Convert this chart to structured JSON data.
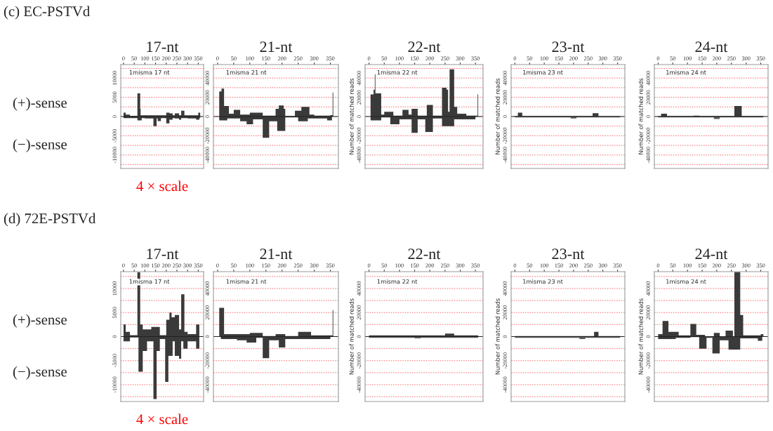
{
  "chart_data": [
    {
      "type": "area",
      "title": "17-nt",
      "annotations": [
        "1misma 17 nt",
        "(c) EC-PSTVd",
        "(+)-sense",
        "(−)-sense",
        "4 × scale"
      ],
      "xlim": [
        -13,
        375
      ],
      "xticks": [
        0,
        50,
        100,
        150,
        200,
        250,
        300,
        350
      ],
      "ylim": [
        -13500,
        13500
      ],
      "yticks": [
        {
          "value": -12500,
          "label": null
        },
        {
          "value": -10000,
          "label": "-10000"
        },
        {
          "value": -7500,
          "label": null
        },
        {
          "value": -5000,
          "label": "-5000"
        },
        {
          "value": -2500,
          "label": null
        },
        0,
        {
          "value": 2500,
          "label": null
        },
        5000,
        {
          "value": 7500,
          "label": null
        },
        10000,
        {
          "value": 12500,
          "label": null
        }
      ],
      "grid": "y",
      "ref_lines": [
        {
          "axis": "y",
          "value": 0,
          "color": "#222222"
        }
      ],
      "series": [
        {
          "color": "#3a3a3a",
          "x": [
            0,
            10,
            10,
            30,
            30,
            65,
            65,
            78,
            78,
            80,
            80,
            200,
            200,
            215,
            215,
            230,
            230,
            240,
            240,
            260,
            260,
            270,
            270,
            285,
            285,
            350,
            350,
            359
          ],
          "values": [
            1000,
            1000,
            500,
            500,
            200,
            200,
            6000,
            6000,
            2000,
            2000,
            300,
            300,
            1000,
            1000,
            800,
            800,
            300,
            300,
            800,
            800,
            300,
            300,
            1500,
            1500,
            300,
            300,
            1000,
            1000
          ]
        },
        {
          "color": "#3a3a3a",
          "x": [
            0,
            65,
            65,
            85,
            85,
            100,
            100,
            140,
            140,
            155,
            155,
            160,
            160,
            175,
            175,
            200,
            200,
            215,
            215,
            230,
            230,
            240,
            240,
            260,
            260,
            270,
            270,
            300,
            300,
            340,
            340,
            355,
            355,
            359
          ],
          "values": [
            -400,
            -400,
            -1000,
            -1000,
            -400,
            -400,
            -500,
            -500,
            -2500,
            -2500,
            -500,
            -500,
            -1200,
            -1200,
            -400,
            -400,
            -1800,
            -1800,
            -800,
            -800,
            -400,
            -400,
            -500,
            -500,
            -800,
            -800,
            -400,
            -400,
            -500,
            -500,
            -800,
            -800,
            -400,
            -400
          ]
        }
      ]
    },
    {
      "type": "area",
      "title": "21-nt",
      "annotations": [
        "1misma 21 nt"
      ],
      "xlim": [
        -13,
        375
      ],
      "xticks": [
        0,
        50,
        100,
        150,
        200,
        250,
        300,
        350
      ],
      "ylim": [
        -54000,
        54000
      ],
      "yticks": [
        {
          "value": -50000,
          "label": null
        },
        {
          "value": -40000,
          "label": "-40000"
        },
        {
          "value": -30000,
          "label": null
        },
        {
          "value": -20000,
          "label": "-20000"
        },
        {
          "value": -10000,
          "label": null
        },
        0,
        {
          "value": 10000,
          "label": null
        },
        20000,
        {
          "value": 30000,
          "label": null
        },
        40000,
        {
          "value": 50000,
          "label": null
        }
      ],
      "grid": "y",
      "ref_lines": [
        {
          "axis": "y",
          "value": 0,
          "color": "#222222"
        }
      ],
      "series": [
        {
          "color": "#3a3a3a",
          "x": [
            5,
            12,
            12,
            20,
            20,
            35,
            35,
            50,
            50,
            70,
            70,
            100,
            100,
            140,
            140,
            180,
            180,
            190,
            190,
            205,
            205,
            210,
            210,
            240,
            240,
            260,
            260,
            285,
            285,
            300,
            300,
            350,
            350,
            357,
            357,
            359
          ],
          "values": [
            26000,
            26000,
            29000,
            29000,
            11000,
            11000,
            3000,
            3000,
            7000,
            7000,
            2000,
            2000,
            4000,
            4000,
            1000,
            1000,
            8000,
            8000,
            11500,
            11500,
            8000,
            8000,
            500,
            500,
            6000,
            6000,
            10000,
            10000,
            2000,
            2000,
            1000,
            1000,
            1500,
            1500,
            25000,
            25000
          ]
        },
        {
          "color": "#3a3a3a",
          "x": [
            5,
            30,
            30,
            70,
            70,
            90,
            90,
            110,
            110,
            140,
            140,
            160,
            160,
            185,
            185,
            210,
            210,
            250,
            250,
            280,
            280,
            340,
            340,
            355
          ],
          "values": [
            -4000,
            -4000,
            -2000,
            -2000,
            -5000,
            -5000,
            -8000,
            -8000,
            -3000,
            -3000,
            -22000,
            -22000,
            -5000,
            -5000,
            -15000,
            -15000,
            -1000,
            -1000,
            -5000,
            -5000,
            -2000,
            -2000,
            -4000,
            -4000
          ]
        }
      ]
    },
    {
      "type": "area",
      "title": "22-nt",
      "ylabel": "Number of matched reads",
      "annotations": [
        "1misma 22 nt"
      ],
      "xlim": [
        -13,
        375
      ],
      "xticks": [
        0,
        50,
        100,
        150,
        200,
        250,
        300,
        350
      ],
      "ylim": [
        -54000,
        54000
      ],
      "yticks": [
        {
          "value": -50000,
          "label": null
        },
        {
          "value": -40000,
          "label": "-40000"
        },
        {
          "value": -30000,
          "label": null
        },
        {
          "value": -20000,
          "label": "-20000"
        },
        {
          "value": -10000,
          "label": null
        },
        0,
        {
          "value": 10000,
          "label": null
        },
        20000,
        {
          "value": 30000,
          "label": null
        },
        40000,
        {
          "value": 50000,
          "label": null
        }
      ],
      "grid": "y",
      "ref_lines": [
        {
          "axis": "y",
          "value": 0,
          "color": "#222222"
        }
      ],
      "series": [
        {
          "color": "#3a3a3a",
          "x": [
            5,
            15,
            15,
            19,
            19,
            21,
            21,
            40,
            40,
            50,
            50,
            80,
            80,
            110,
            110,
            130,
            130,
            140,
            140,
            160,
            160,
            190,
            190,
            210,
            210,
            240,
            240,
            255,
            255,
            260,
            260,
            265,
            265,
            280,
            280,
            290,
            290,
            320,
            320,
            357,
            357,
            359
          ],
          "values": [
            23000,
            23000,
            28000,
            28000,
            44000,
            44000,
            24000,
            24000,
            2000,
            2000,
            5000,
            5000,
            1000,
            1000,
            7000,
            7000,
            2000,
            2000,
            8000,
            8000,
            1000,
            1000,
            12000,
            12000,
            1000,
            1000,
            30000,
            30000,
            28000,
            28000,
            5000,
            5000,
            49000,
            49000,
            10000,
            10000,
            3000,
            3000,
            1000,
            1000,
            23000,
            23000
          ]
        },
        {
          "color": "#3a3a3a",
          "x": [
            5,
            40,
            40,
            70,
            70,
            100,
            100,
            140,
            140,
            160,
            160,
            185,
            185,
            210,
            210,
            240,
            240,
            280,
            280,
            350
          ],
          "values": [
            -4000,
            -4000,
            -1000,
            -1000,
            -8000,
            -8000,
            -3000,
            -3000,
            -17000,
            -17000,
            -3000,
            -3000,
            -16000,
            -16000,
            -2000,
            -2000,
            -10000,
            -10000,
            -3000,
            -3000
          ]
        }
      ]
    },
    {
      "type": "area",
      "title": "23-nt",
      "ylabel": "Number of matched reads",
      "annotations": [
        "1misma 23 nt"
      ],
      "xlim": [
        -13,
        375
      ],
      "xticks": [
        0,
        50,
        100,
        150,
        200,
        250,
        300,
        350
      ],
      "ylim": [
        -54000,
        54000
      ],
      "yticks": [
        {
          "value": -50000,
          "label": null
        },
        {
          "value": -40000,
          "label": "-40000"
        },
        {
          "value": -30000,
          "label": null
        },
        {
          "value": -20000,
          "label": "-20000"
        },
        {
          "value": -10000,
          "label": null
        },
        0,
        {
          "value": 10000,
          "label": null
        },
        20000,
        {
          "value": 30000,
          "label": null
        },
        40000,
        {
          "value": 50000,
          "label": null
        }
      ],
      "grid": "y",
      "ref_lines": [
        {
          "axis": "y",
          "value": 0,
          "color": "#222222"
        }
      ],
      "series": [
        {
          "color": "#3a3a3a",
          "x": [
            0,
            10,
            10,
            25,
            25,
            265,
            265,
            285,
            285,
            359
          ],
          "values": [
            300,
            300,
            4000,
            4000,
            500,
            500,
            3500,
            3500,
            300,
            300
          ]
        },
        {
          "color": "#5a5a5a",
          "x": [
            0,
            190,
            190,
            210,
            210,
            359
          ],
          "values": [
            -1000,
            -1000,
            -2000,
            -2000,
            -1000,
            -1000
          ]
        }
      ]
    },
    {
      "type": "area",
      "title": "24-nt",
      "ylabel": "Number of matched reads",
      "annotations": [
        "1misma 24 nt"
      ],
      "xlim": [
        -13,
        375
      ],
      "xticks": [
        0,
        50,
        100,
        150,
        200,
        250,
        300,
        350
      ],
      "ylim": [
        -54000,
        54000
      ],
      "yticks": [
        {
          "value": -50000,
          "label": null
        },
        {
          "value": -40000,
          "label": "-40000"
        },
        {
          "value": -30000,
          "label": null
        },
        {
          "value": -20000,
          "label": "-20000"
        },
        {
          "value": -10000,
          "label": null
        },
        0,
        {
          "value": 10000,
          "label": null
        },
        20000,
        {
          "value": 30000,
          "label": null
        },
        40000,
        {
          "value": 50000,
          "label": null
        }
      ],
      "grid": "y",
      "ref_lines": [
        {
          "axis": "y",
          "value": 0,
          "color": "#222222"
        }
      ],
      "series": [
        {
          "color": "#3a3a3a",
          "x": [
            0,
            10,
            10,
            30,
            30,
            120,
            120,
            140,
            140,
            260,
            260,
            285,
            285,
            359
          ],
          "values": [
            300,
            300,
            3000,
            3000,
            500,
            500,
            1000,
            1000,
            500,
            500,
            11000,
            11000,
            500,
            500
          ]
        },
        {
          "color": "#5a5a5a",
          "x": [
            0,
            190,
            190,
            210,
            210,
            359
          ],
          "values": [
            -1000,
            -1000,
            -2500,
            -2500,
            -1000,
            -1000
          ]
        }
      ]
    },
    {
      "type": "area",
      "title": "17-nt",
      "annotations": [
        "1misma 17 nt",
        "(d) 72E-PSTVd",
        "(+)-sense",
        "(−)-sense",
        "4 × scale"
      ],
      "xlim": [
        -13,
        375
      ],
      "xticks": [
        0,
        50,
        100,
        150,
        200,
        250,
        300,
        350
      ],
      "ylim": [
        -13500,
        13500
      ],
      "yticks": [
        {
          "value": -12500,
          "label": null
        },
        {
          "value": -10000,
          "label": "-10000"
        },
        {
          "value": -7500,
          "label": null
        },
        {
          "value": -5000,
          "label": "-5000"
        },
        {
          "value": -2500,
          "label": null
        },
        0,
        {
          "value": 2500,
          "label": null
        },
        5000,
        {
          "value": 7500,
          "label": null
        },
        10000,
        {
          "value": 12500,
          "label": null
        }
      ],
      "grid": "y",
      "ref_lines": [
        {
          "axis": "y",
          "value": 0,
          "color": "#222222"
        }
      ],
      "series": [
        {
          "color": "#3a3a3a",
          "x": [
            0,
            10,
            10,
            30,
            30,
            65,
            65,
            78,
            78,
            90,
            90,
            130,
            130,
            170,
            170,
            200,
            200,
            215,
            215,
            225,
            225,
            240,
            240,
            260,
            260,
            270,
            270,
            285,
            285,
            300,
            300,
            340,
            340,
            355
          ],
          "values": [
            2500,
            2500,
            1000,
            1000,
            300,
            300,
            13400,
            13400,
            2500,
            2500,
            1500,
            1500,
            2000,
            2000,
            300,
            300,
            3500,
            3500,
            5000,
            5000,
            4000,
            4000,
            4500,
            4500,
            1500,
            1500,
            8800,
            8800,
            1000,
            1000,
            500,
            500,
            2500,
            2500
          ]
        },
        {
          "color": "#3a3a3a",
          "x": [
            0,
            30,
            30,
            70,
            70,
            90,
            90,
            110,
            110,
            140,
            140,
            155,
            155,
            170,
            170,
            195,
            195,
            210,
            210,
            230,
            230,
            240,
            240,
            260,
            260,
            270,
            270,
            280,
            280,
            300,
            300,
            340,
            340,
            355
          ],
          "values": [
            -1000,
            -1000,
            -200,
            -200,
            -7300,
            -7300,
            -3000,
            -3000,
            -1000,
            -1000,
            -13000,
            -13000,
            -3000,
            -3000,
            -500,
            -500,
            -9400,
            -9400,
            -4000,
            -4000,
            -1000,
            -1000,
            -4000,
            -4000,
            -4600,
            -4600,
            -1000,
            -1000,
            -2500,
            -2500,
            -1000,
            -1000,
            -2500,
            -2500
          ]
        }
      ]
    },
    {
      "type": "area",
      "title": "21-nt",
      "annotations": [
        "1misma 21 nt"
      ],
      "xlim": [
        -13,
        375
      ],
      "xticks": [
        0,
        50,
        100,
        150,
        200,
        250,
        300,
        350
      ],
      "ylim": [
        -54000,
        54000
      ],
      "yticks": [
        {
          "value": -50000,
          "label": null
        },
        {
          "value": -40000,
          "label": "-40000"
        },
        {
          "value": -30000,
          "label": null
        },
        {
          "value": -20000,
          "label": "-20000"
        },
        {
          "value": -10000,
          "label": null
        },
        0,
        {
          "value": 10000,
          "label": null
        },
        20000,
        {
          "value": 30000,
          "label": null
        },
        40000,
        {
          "value": 50000,
          "label": null
        }
      ],
      "grid": "y",
      "ref_lines": [
        {
          "axis": "y",
          "value": 0,
          "color": "#222222"
        }
      ],
      "series": [
        {
          "color": "#3a3a3a",
          "x": [
            5,
            20,
            20,
            100,
            100,
            140,
            140,
            180,
            180,
            210,
            210,
            250,
            250,
            290,
            290,
            357,
            357,
            359
          ],
          "values": [
            24000,
            24000,
            2000,
            2000,
            3000,
            3000,
            500,
            500,
            2000,
            2000,
            500,
            500,
            4000,
            4000,
            1000,
            1000,
            22000,
            22000
          ]
        },
        {
          "color": "#3a3a3a",
          "x": [
            10,
            60,
            60,
            90,
            90,
            120,
            120,
            140,
            140,
            160,
            160,
            190,
            190,
            210,
            210,
            350
          ],
          "values": [
            -2000,
            -2000,
            -3000,
            -3000,
            -5000,
            -5000,
            -1000,
            -1000,
            -18000,
            -18000,
            -3000,
            -3000,
            -9000,
            -9000,
            -2000,
            -2000
          ]
        }
      ]
    },
    {
      "type": "area",
      "title": "22-nt",
      "ylabel": "Number of matched reads",
      "annotations": [
        "1misma 22 nt"
      ],
      "xlim": [
        -13,
        375
      ],
      "xticks": [
        0,
        50,
        100,
        150,
        200,
        250,
        300,
        350
      ],
      "ylim": [
        -54000,
        54000
      ],
      "yticks": [
        {
          "value": -50000,
          "label": null
        },
        {
          "value": -40000,
          "label": "-40000"
        },
        {
          "value": -30000,
          "label": null
        },
        {
          "value": -20000,
          "label": "-20000"
        },
        {
          "value": -10000,
          "label": null
        },
        0,
        {
          "value": 10000,
          "label": null
        },
        20000,
        {
          "value": 30000,
          "label": null
        },
        40000,
        {
          "value": 50000,
          "label": null
        }
      ],
      "grid": "y",
      "ref_lines": [
        {
          "axis": "y",
          "value": 0,
          "color": "#222222"
        }
      ],
      "series": [
        {
          "color": "#3a3a3a",
          "x": [
            0,
            250,
            250,
            280,
            280,
            359
          ],
          "values": [
            1000,
            1000,
            2500,
            2500,
            1000,
            1000
          ]
        },
        {
          "color": "#5a5a5a",
          "x": [
            0,
            150,
            150,
            170,
            170,
            359
          ],
          "values": [
            -1000,
            -1000,
            -1500,
            -1500,
            -1000,
            -1000
          ]
        }
      ]
    },
    {
      "type": "area",
      "title": "23-nt",
      "ylabel": "Number of matched reads",
      "annotations": [
        "1misma 23 nt"
      ],
      "xlim": [
        -13,
        375
      ],
      "xticks": [
        0,
        50,
        100,
        150,
        200,
        250,
        300,
        350
      ],
      "ylim": [
        -54000,
        54000
      ],
      "yticks": [
        {
          "value": -50000,
          "label": null
        },
        {
          "value": -40000,
          "label": "-40000"
        },
        {
          "value": -30000,
          "label": null
        },
        {
          "value": -20000,
          "label": "-20000"
        },
        {
          "value": -10000,
          "label": null
        },
        0,
        {
          "value": 10000,
          "label": null
        },
        20000,
        {
          "value": 30000,
          "label": null
        },
        40000,
        {
          "value": 50000,
          "label": null
        }
      ],
      "grid": "y",
      "ref_lines": [
        {
          "axis": "y",
          "value": 0,
          "color": "#222222"
        }
      ],
      "series": [
        {
          "color": "#3a3a3a",
          "x": [
            0,
            270,
            270,
            285,
            285,
            359
          ],
          "values": [
            500,
            500,
            4000,
            4000,
            500,
            500
          ]
        },
        {
          "color": "#5a5a5a",
          "x": [
            0,
            220,
            220,
            240,
            240,
            359
          ],
          "values": [
            -1000,
            -1000,
            -2000,
            -2000,
            -1000,
            -1000
          ]
        }
      ]
    },
    {
      "type": "area",
      "title": "24-nt",
      "ylabel": "Number of matched reads",
      "annotations": [
        "1misma 24 nt"
      ],
      "xlim": [
        -13,
        375
      ],
      "xticks": [
        0,
        50,
        100,
        150,
        200,
        250,
        300,
        350
      ],
      "ylim": [
        -54000,
        54000
      ],
      "yticks": [
        {
          "value": -50000,
          "label": null
        },
        {
          "value": -40000,
          "label": "-40000"
        },
        {
          "value": -30000,
          "label": null
        },
        {
          "value": -20000,
          "label": "-20000"
        },
        {
          "value": -10000,
          "label": null
        },
        0,
        {
          "value": 10000,
          "label": null
        },
        20000,
        {
          "value": 30000,
          "label": null
        },
        40000,
        {
          "value": 50000,
          "label": null
        }
      ],
      "grid": "y",
      "ref_lines": [
        {
          "axis": "y",
          "value": 0,
          "color": "#222222"
        }
      ],
      "series": [
        {
          "color": "#3a3a3a",
          "x": [
            0,
            15,
            15,
            35,
            35,
            70,
            70,
            110,
            110,
            130,
            130,
            160,
            160,
            190,
            190,
            210,
            210,
            230,
            230,
            255,
            255,
            260,
            260,
            280,
            280,
            290,
            290,
            350,
            350,
            359
          ],
          "values": [
            2000,
            2000,
            13000,
            13000,
            4000,
            4000,
            1000,
            1000,
            10500,
            10500,
            1500,
            1500,
            0,
            0,
            3000,
            3000,
            0,
            0,
            5000,
            5000,
            0,
            0,
            53700,
            53700,
            18000,
            18000,
            1000,
            1000,
            2000,
            2000
          ]
        },
        {
          "color": "#3a3a3a",
          "x": [
            0,
            60,
            60,
            110,
            110,
            140,
            140,
            165,
            165,
            185,
            185,
            210,
            210,
            240,
            240,
            280,
            280,
            340,
            340,
            355
          ],
          "values": [
            -2000,
            -2000,
            -1000,
            -1000,
            -500,
            -500,
            -10000,
            -10000,
            -1000,
            -1000,
            -14000,
            -14000,
            -3000,
            -3000,
            -10800,
            -10800,
            -1500,
            -1500,
            -3500,
            -3500
          ]
        }
      ]
    }
  ]
}
